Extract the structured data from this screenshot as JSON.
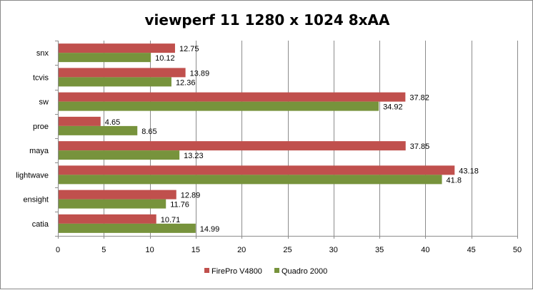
{
  "chart_data": {
    "type": "bar",
    "orientation": "horizontal",
    "title": "viewperf 11 1280 x 1024 8xAA",
    "xlabel": "",
    "ylabel": "",
    "categories": [
      "snx",
      "tcvis",
      "sw",
      "proe",
      "maya",
      "lightwave",
      "ensight",
      "catia"
    ],
    "series": [
      {
        "name": "FirePro V4800",
        "color": "#c0504d",
        "values": [
          12.75,
          13.89,
          37.82,
          4.65,
          37.85,
          43.18,
          12.89,
          10.71
        ]
      },
      {
        "name": "Quadro 2000",
        "color": "#77933c",
        "values": [
          10.12,
          12.36,
          34.92,
          8.65,
          13.23,
          41.8,
          11.76,
          14.99
        ]
      }
    ],
    "value_labels": [
      [
        "12.75",
        "13.89",
        "37.82",
        "4.65",
        "37.85",
        "43.18",
        "12.89",
        "10.71"
      ],
      [
        "10.12",
        "12.36",
        "34.92",
        "8.65",
        "13.23",
        "41.8",
        "11.76",
        "14.99"
      ]
    ],
    "xlim": [
      0,
      50
    ],
    "xticks": [
      0,
      5,
      10,
      15,
      20,
      25,
      30,
      35,
      40,
      45,
      50
    ],
    "grid": true,
    "legend_position": "bottom"
  }
}
